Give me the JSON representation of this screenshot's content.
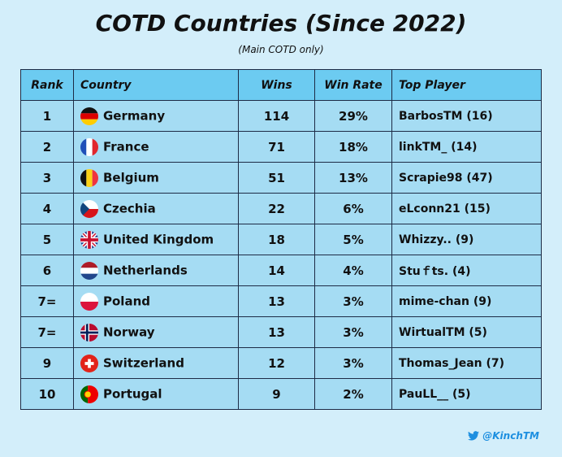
{
  "header": {
    "title": "COTD Countries (Since 2022)",
    "subtitle": "(Main COTD only)"
  },
  "table": {
    "columns": [
      "Rank",
      "Country",
      "Wins",
      "Win Rate",
      "Top Player"
    ],
    "rows": [
      [
        "1",
        "Germany",
        "114",
        "29%",
        "BarbosTM (16)"
      ],
      [
        "2",
        "France",
        "71",
        "18%",
        "linkTM_ (14)"
      ],
      [
        "3",
        "Belgium",
        "51",
        "13%",
        "Scrapie98 (47)"
      ],
      [
        "4",
        "Czechia",
        "22",
        "6%",
        "eLconn21 (15)"
      ],
      [
        "5",
        "United Kingdom",
        "18",
        "5%",
        "Whizzy.. (9)"
      ],
      [
        "6",
        "Netherlands",
        "14",
        "4%",
        "Stuｆts. (4)"
      ],
      [
        "7=",
        "Poland",
        "13",
        "3%",
        "mime-chan (9)"
      ],
      [
        "7=",
        "Norway",
        "13",
        "3%",
        "WirtualTM (5)"
      ],
      [
        "9",
        "Switzerland",
        "12",
        "3%",
        "Thomas_Jean (7)"
      ],
      [
        "10",
        "Portugal",
        "9",
        "2%",
        "PauLL__ (5)"
      ]
    ]
  },
  "footer": {
    "handle": "@KinchTM"
  }
}
